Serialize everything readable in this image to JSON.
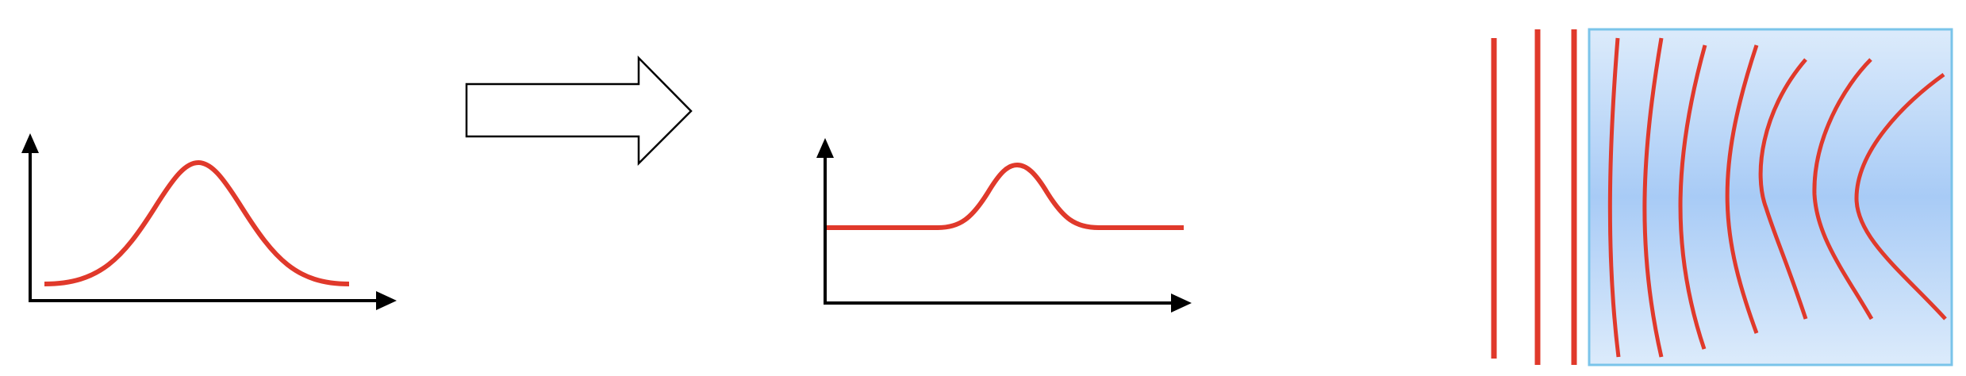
{
  "colors": {
    "background": "#ffffff",
    "axis": "#000000",
    "curve": "#e0392b",
    "arrow_outline": "#000000",
    "arrow_fill": "#ffffff",
    "medium_fill_edge": "#dcebfb",
    "medium_fill_center": "#a8cbf6",
    "medium_border": "#7ac4ea"
  },
  "panels": [
    {
      "id": "input-pulse",
      "shape": "gaussian-pulse"
    },
    {
      "id": "transform-arrow",
      "shape": "block-arrow-right"
    },
    {
      "id": "output-pulse",
      "shape": "narrow-pulse-on-baseline"
    },
    {
      "id": "wavefronts",
      "shape": "plane-wavefronts-entering-medium",
      "lines_outside": 3,
      "lines_inside": 7
    }
  ]
}
